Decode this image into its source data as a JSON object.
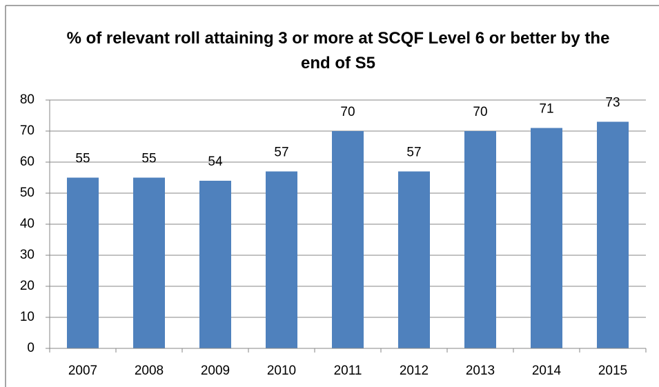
{
  "chart_data": {
    "type": "bar",
    "title": "% of relevant roll attaining 3 or more at SCQF Level 6 or better by the end of S5",
    "categories": [
      "2007",
      "2008",
      "2009",
      "2010",
      "2011",
      "2012",
      "2013",
      "2014",
      "2015"
    ],
    "values": [
      55,
      55,
      54,
      57,
      70,
      57,
      70,
      71,
      73
    ],
    "color": "#4f81bd",
    "ylim": [
      0,
      80
    ],
    "yticks": [
      0,
      10,
      20,
      30,
      40,
      50,
      60,
      70,
      80
    ],
    "grid": true
  }
}
